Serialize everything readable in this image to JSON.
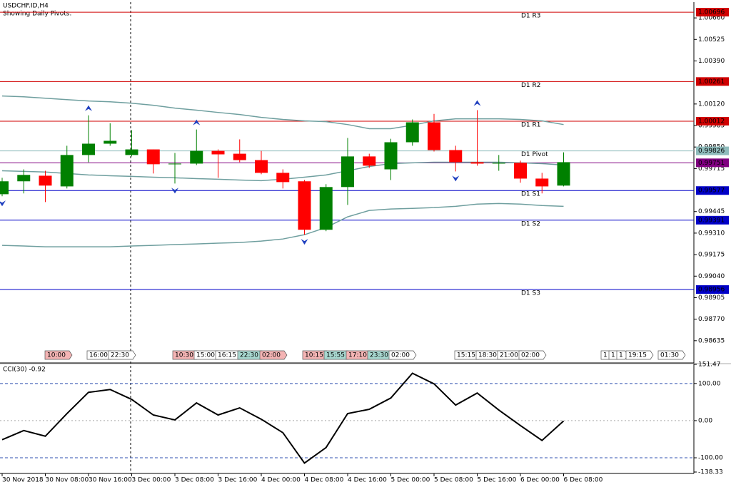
{
  "chart_data": [
    {
      "type": "candlestick",
      "title": "USDCHF.ID,H4",
      "subtitle": "Showing Daily Pivots.",
      "up_color": "#008000",
      "down_color": "#ff0000",
      "categories": [
        "30 Nov 2018",
        null,
        "30 Nov 08:00",
        null,
        "30 Nov 16:00",
        null,
        "3 Dec 00:00",
        null,
        "3 Dec 08:00",
        null,
        "3 Dec 16:00",
        null,
        "4 Dec 00:00",
        null,
        "4 Dec 08:00",
        null,
        "4 Dec 16:00",
        null,
        "5 Dec 00:00",
        null,
        "5 Dec 08:00",
        null,
        "5 Dec 16:00",
        null,
        "6 Dec 00:00",
        null,
        "6 Dec 08:00"
      ],
      "open": [
        0.99554,
        0.99635,
        0.9967,
        0.99603,
        0.998,
        0.99871,
        0.998,
        0.99835,
        0.99742,
        0.99746,
        0.99826,
        0.99808,
        0.99768,
        0.99688,
        0.99635,
        0.99331,
        0.99599,
        0.99791,
        0.9971,
        0.9988,
        1.00005,
        0.99831,
        0.99755,
        0.99746,
        0.99751,
        0.99652,
        0.99608
      ],
      "high": [
        0.99657,
        0.9971,
        0.99701,
        0.99858,
        1.00049,
        0.99999,
        0.99956,
        0.99835,
        0.99813,
        0.9996,
        0.99835,
        0.99898,
        0.99826,
        0.9971,
        0.99643,
        0.99617,
        0.99907,
        0.99808,
        0.99902,
        1.00023,
        1.00058,
        0.99858,
        1.00081,
        0.998,
        0.99764,
        0.99688,
        0.99817
      ],
      "low": [
        0.99541,
        0.99559,
        0.99505,
        0.9959,
        0.99755,
        0.99858,
        0.99791,
        0.99684,
        0.99621,
        0.99737,
        0.99657,
        0.99755,
        0.99679,
        0.9959,
        0.993,
        0.99322,
        0.99487,
        0.99719,
        0.99643,
        0.99858,
        0.99822,
        0.99697,
        0.99733,
        0.99701,
        0.99626,
        0.99559,
        0.99603
      ],
      "close": [
        0.99635,
        0.99675,
        0.99608,
        0.998,
        0.99871,
        0.99889,
        0.99835,
        0.99742,
        0.99746,
        0.99826,
        0.99804,
        0.99768,
        0.99688,
        0.9963,
        0.99331,
        0.99599,
        0.99791,
        0.99733,
        0.9988,
        1.00005,
        0.99831,
        0.99755,
        0.99746,
        0.99751,
        0.99652,
        0.99603,
        0.99755
      ],
      "series": [
        {
          "color": "#6f9f9f",
          "values": [
            1.0017,
            1.00165,
            1.00156,
            1.00147,
            1.00139,
            1.00134,
            1.00125,
            1.00112,
            1.00094,
            1.00081,
            1.00067,
            1.00054,
            1.00036,
            1.00023,
            1.00014,
            1.00009,
            0.99991,
            0.99965,
            0.99965,
            0.99987,
            1.00014,
            1.00027,
            1.00027,
            1.00027,
            1.00023,
            1.00014,
            0.99991
          ]
        },
        {
          "color": "#6f9f9f",
          "values": [
            0.99701,
            0.99697,
            0.99693,
            0.99684,
            0.99675,
            0.9967,
            0.99666,
            0.99661,
            0.99657,
            0.99652,
            0.99648,
            0.99643,
            0.99639,
            0.99648,
            0.99661,
            0.99675,
            0.99701,
            0.99728,
            0.99746,
            0.99751,
            0.99755,
            0.99755,
            0.99755,
            0.99755,
            0.99751,
            0.99746,
            0.99737
          ]
        },
        {
          "color": "#6f9f9f",
          "values": [
            0.99233,
            0.99229,
            0.99224,
            0.99224,
            0.99224,
            0.99224,
            0.99229,
            0.99233,
            0.99238,
            0.99242,
            0.99247,
            0.99251,
            0.9926,
            0.99273,
            0.993,
            0.99345,
            0.99412,
            0.99452,
            0.99461,
            0.99465,
            0.9947,
            0.99478,
            0.99492,
            0.99496,
            0.99492,
            0.99483,
            0.99478
          ]
        }
      ],
      "fractals_up": [
        null,
        null,
        null,
        null,
        1.00049,
        null,
        null,
        null,
        null,
        0.9996,
        null,
        null,
        null,
        null,
        null,
        null,
        null,
        null,
        null,
        null,
        null,
        null,
        1.00081,
        null,
        null,
        null,
        null
      ],
      "fractals_down": [
        0.99541,
        null,
        null,
        null,
        null,
        null,
        null,
        null,
        0.99621,
        null,
        null,
        null,
        null,
        null,
        0.993,
        null,
        null,
        null,
        null,
        null,
        null,
        0.99697,
        null,
        null,
        null,
        null,
        null
      ],
      "fractal_color": "#1f3fbf",
      "pivots": [
        {
          "name": "D1 R3",
          "value": 1.00696,
          "color": "#d00000"
        },
        {
          "name": "D1 R2",
          "value": 1.00261,
          "color": "#d00000"
        },
        {
          "name": "D1 R1",
          "value": 1.00012,
          "color": "#d00000"
        },
        {
          "name": "D1 Pivot",
          "value": 0.99826,
          "color": "#8fbcbc"
        },
        {
          "name": "D1 S1",
          "value": 0.99577,
          "color": "#0000c8"
        },
        {
          "name": "D1 S2",
          "value": 0.99391,
          "color": "#0000c8"
        },
        {
          "name": "D1 S3",
          "value": 0.98956,
          "color": "#0000c8"
        }
      ],
      "price_line": {
        "value": 0.99751,
        "color": "#800080"
      },
      "ylim": [
        0.985,
        1.0075
      ],
      "yticks": [
        {
          "value": 1.0066,
          "label": "1.00660"
        },
        1.00525,
        {
          "value": 1.0039,
          "label": "1.00390"
        },
        {
          "value": 1.0012,
          "label": "1.00120"
        },
        0.99985,
        {
          "value": 0.9985,
          "label": "0.99850"
        },
        0.99715,
        0.99445,
        {
          "value": 0.9931,
          "label": "0.99310"
        },
        0.99175,
        {
          "value": 0.9904,
          "label": "0.99040"
        },
        0.98905,
        {
          "value": 0.9877,
          "label": "0.98770"
        },
        0.98635
      ]
    },
    {
      "type": "line",
      "title": "CCI(30) -0.92",
      "series": [
        {
          "color": "#000000",
          "values": [
            -51.4,
            -26.7,
            -41.9,
            19.0,
            76.2,
            83.8,
            57.1,
            15.2,
            1.9,
            47.6,
            15.2,
            34.3,
            3.8,
            -32.4,
            -114.3,
            -72.4,
            19.0,
            30.5,
            61.0,
            127.6,
            99.0,
            41.9,
            74.3,
            28.6,
            -13.3,
            -53.3,
            -0.92
          ]
        }
      ],
      "ylim": [
        -138.33,
        151.47
      ],
      "yticks": [
        151.47,
        {
          "value": 100,
          "label": "100.00"
        },
        {
          "value": 0,
          "label": "0.00"
        },
        {
          "value": -100,
          "label": "-100.00"
        },
        -138.33
      ]
    }
  ],
  "time_markers": [
    {
      "text": "10:00",
      "color": "#f4b4b4"
    },
    {
      "text": "16:00",
      "color": "#ffffff"
    },
    {
      "text": "22:30",
      "color": "#ffffff"
    },
    {
      "text": "10:30",
      "color": "#f4b4b4"
    },
    {
      "text": "15:00",
      "color": "#ffffff"
    },
    {
      "text": "16:15",
      "color": "#ffffff"
    },
    {
      "text": "22:30",
      "color": "#a8d8d0"
    },
    {
      "text": "02:00",
      "color": "#f4b4b4"
    },
    {
      "text": "10:15",
      "color": "#f4b4b4"
    },
    {
      "text": "15:55",
      "color": "#a8d8d0"
    },
    {
      "text": "17:10",
      "color": "#f4b4b4"
    },
    {
      "text": "23:30",
      "color": "#a8d8d0"
    },
    {
      "text": "02:00",
      "color": "#ffffff"
    },
    {
      "text": "15:15",
      "color": "#ffffff"
    },
    {
      "text": "18:30",
      "color": "#ffffff"
    },
    {
      "text": "21:00",
      "color": "#ffffff"
    },
    {
      "text": "02:00",
      "color": "#ffffff"
    },
    {
      "text": "1",
      "color": "#ffffff"
    },
    {
      "text": "1",
      "color": "#ffffff"
    },
    {
      "text": "1",
      "color": "#ffffff"
    },
    {
      "text": "19:15",
      "color": "#ffffff"
    },
    {
      "text": "01:30",
      "color": "#ffffff"
    }
  ]
}
